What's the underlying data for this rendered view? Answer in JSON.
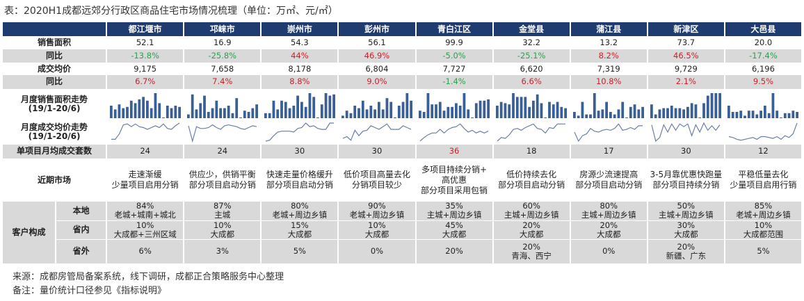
{
  "title": "表：2020H1成都远郊分行政区商品住宅市场情况梳理（单位：万㎡、元/㎡）",
  "districts": [
    "都江堰市",
    "邛崃市",
    "崇州市",
    "彭州市",
    "青白江区",
    "金堂县",
    "蒲江县",
    "新津区",
    "大邑县"
  ],
  "rows": {
    "sales_area": {
      "label": "销售面积",
      "values": [
        "52.1",
        "16.9",
        "54.3",
        "56.1",
        "99.9",
        "32.2",
        "13.2",
        "73.7",
        "20.0"
      ]
    },
    "sales_area_yoy": {
      "label": "同比",
      "values": [
        "-13.8%",
        "-25.8%",
        "44%",
        "46.9%",
        "-5.0%",
        "-25.1%",
        "8.2%",
        "46.5%",
        "-17.4%"
      ]
    },
    "avg_price": {
      "label": "成交均价",
      "values": [
        "9,175",
        "7,658",
        "8,178",
        "6,804",
        "7,727",
        "6,620",
        "7,319",
        "9,729",
        "6,196"
      ]
    },
    "avg_price_yoy": {
      "label": "同比",
      "values": [
        "6.7%",
        "7.4%",
        "8.8%",
        "9.0%",
        "-1.4%",
        "6.6%",
        "10.8%",
        "2.1%",
        "9.5%"
      ]
    },
    "monthly_area": {
      "label": "月度销售面积走势",
      "sub": "(19/1-20/6)"
    },
    "monthly_price": {
      "label": "月度成交均价走势",
      "sub": "(19/1-20/6)"
    },
    "units": {
      "label": "单项目月均成交套数",
      "values": [
        "24",
        "24",
        "30",
        "30",
        "36",
        "18",
        "17",
        "30",
        "12"
      ],
      "highlight_index": 4
    },
    "market": {
      "label": "近期市场",
      "values": [
        [
          "走速渐缓",
          "少量项目启用分销"
        ],
        [
          "供应少，供销平衡",
          "部分项目启动分销"
        ],
        [
          "快速走量价格缓升",
          "部分项目启动分销"
        ],
        [
          "低价项目高量去化",
          "分销项目较少"
        ],
        [
          "多项目持续分销+",
          "高优惠",
          "部分项目采用包销"
        ],
        [
          "低价持续去化",
          "部分项目启动分销"
        ],
        [
          "房源少流速提高",
          "部分项目启动分销"
        ],
        [
          "3-5月靠优惠快跑量",
          "部分项目持续分销"
        ],
        [
          "平稳低量去化",
          "少量项目启用行销"
        ]
      ]
    },
    "customers": {
      "label": "客户构成",
      "local": {
        "label": "本地",
        "values": [
          [
            "84%",
            "老城+城南+城北"
          ],
          [
            "87%",
            "主城"
          ],
          [
            "80%",
            "老城+周边乡镇"
          ],
          [
            "90%",
            "老城+周边乡镇"
          ],
          [
            "35%",
            "主城+周边乡镇"
          ],
          [
            "60%",
            "主城+周边乡镇"
          ],
          [
            "80%",
            "主城+周边乡镇"
          ],
          [
            "50%",
            "主城+周边乡镇"
          ],
          [
            "85%",
            "老城+周边乡镇"
          ]
        ]
      },
      "province": {
        "label": "省内",
        "values": [
          [
            "10%",
            "大成都+三州区域"
          ],
          [
            "10%",
            "大成都"
          ],
          [
            "15%",
            "大成都"
          ],
          [
            "10%",
            "大成都"
          ],
          [
            "45%",
            "大成都"
          ],
          [
            "20%",
            "大成都"
          ],
          [
            "20%",
            "大成都"
          ],
          [
            "30%",
            "大成都"
          ],
          [
            "10%",
            "大成都范围"
          ]
        ]
      },
      "outside": {
        "label": "省外",
        "values": [
          [
            "6%"
          ],
          [
            "3%"
          ],
          [
            "5%"
          ],
          [
            "0%"
          ],
          [
            "20%"
          ],
          [
            "20%",
            "青海、西宁"
          ],
          [
            "0%"
          ],
          [
            "20%",
            "新疆、广东"
          ],
          [
            "5%"
          ]
        ]
      }
    }
  },
  "chart_data": {
    "type": "bar+line sparklines",
    "period": "19/1-20/6",
    "bar_color": "#3a5f94",
    "line_color": "#6a7fa8",
    "monthly_area_relative": [
      [
        5,
        3.5,
        5.5,
        4,
        4.5,
        7,
        6,
        7.5,
        8.5,
        7,
        4,
        10,
        6,
        0.2,
        5,
        4,
        5,
        4.5
      ],
      [
        1.5,
        9.5,
        3.5,
        6,
        9,
        2.5,
        4,
        7,
        4,
        4,
        5,
        2,
        8,
        0.2,
        3,
        2.5,
        4,
        5.5
      ],
      [
        2,
        2,
        7,
        3.5,
        7,
        6.5,
        4,
        5,
        9,
        6.5,
        4.5,
        10,
        8.5,
        0.2,
        5.5,
        10,
        9,
        9.5
      ],
      [
        1,
        3,
        2,
        5,
        4,
        7,
        3.5,
        5,
        3.5,
        6.5,
        3.5,
        8,
        6.5,
        0.2,
        5,
        6.5,
        10,
        7
      ],
      [
        3,
        2.5,
        10,
        5.5,
        5.5,
        6.5,
        3,
        4.5,
        4.5,
        6,
        5,
        10,
        3.5,
        0.2,
        6,
        7,
        7,
        7.5
      ],
      [
        5,
        6.5,
        6,
        5.5,
        10,
        8.5,
        8.5,
        8.5,
        4.5,
        7,
        9.5,
        6,
        0.2,
        6.5,
        5.5,
        6.5,
        4.5,
        4
      ],
      [
        2.5,
        1,
        6.5,
        1.5,
        1.5,
        10,
        3,
        3.5,
        6.5,
        2.5,
        1.5,
        3.5,
        6.5,
        0.2,
        4.5,
        5.5,
        3.5,
        4.5
      ],
      [
        5.5,
        1.5,
        3.5,
        4,
        4,
        5,
        4,
        4,
        3.5,
        4.5,
        6,
        5.5,
        0.2,
        6,
        9,
        10,
        10,
        10
      ],
      [
        5,
        2.5,
        2.5,
        3,
        1,
        3,
        3,
        1.5,
        3,
        5,
        2,
        10,
        3,
        0.2,
        2,
        2,
        3,
        2.5
      ]
    ],
    "monthly_price_relative": [
      [
        1,
        1,
        4,
        9,
        9.5,
        8,
        9.5,
        8,
        7.5,
        6.5,
        7.5,
        8.5,
        7.5,
        9.5,
        7,
        6.5,
        8.5,
        10
      ],
      [
        8.5,
        0,
        8,
        7,
        7,
        7.5,
        9,
        7.5,
        6.5,
        8.5,
        9,
        8.5,
        8,
        7,
        6.5,
        7.5,
        8.5,
        8
      ],
      [
        0,
        0.5,
        3,
        5,
        5.5,
        5.5,
        5.5,
        5,
        7,
        7.5,
        10,
        8,
        8.5,
        7,
        6.5,
        6.5,
        10,
        10
      ],
      [
        1.5,
        2.5,
        0.5,
        6,
        3,
        5.5,
        6,
        8.5,
        7.5,
        6.5,
        8,
        9.5,
        6.5,
        6.5,
        6.5,
        8.5,
        7.5,
        6.5
      ],
      [
        0,
        2,
        3.5,
        4.5,
        4.5,
        6.5,
        4.5,
        6.5,
        7.5,
        8,
        9.5,
        7,
        5,
        6,
        4.5,
        5.5,
        4.5,
        5.5
      ],
      [
        0,
        2,
        1.5,
        3.5,
        6.5,
        7,
        6,
        7.5,
        8.5,
        9.5,
        7,
        6.5,
        4.5,
        7.5,
        7,
        9.5,
        9.5,
        9.5
      ],
      [
        5,
        0,
        3,
        4,
        7,
        5.5,
        5,
        6,
        6.5,
        6,
        7,
        9.5,
        6,
        6.5,
        7.5,
        6.5,
        8.5,
        8.5
      ],
      [
        9,
        0,
        2,
        9,
        5,
        9.5,
        6,
        9.5,
        8,
        9.5,
        3,
        9,
        5,
        10,
        6,
        8.5,
        6,
        9
      ],
      [
        2.5,
        2,
        1,
        0.5,
        1,
        1.5,
        2,
        1,
        2.5,
        2.5,
        2,
        1.5,
        2.5,
        1,
        3,
        2,
        4,
        10
      ]
    ]
  },
  "colors": {
    "header": "#1f3b70",
    "gray_row": "#d9d9d9",
    "up": "#cc1f2b",
    "down": "#2e9e4f"
  },
  "footer": {
    "source": "来源：成都房管局备案系统，线下调研，成都正合策略服务中心整理",
    "note": "备注：量价统计口径参见《指标说明》"
  }
}
